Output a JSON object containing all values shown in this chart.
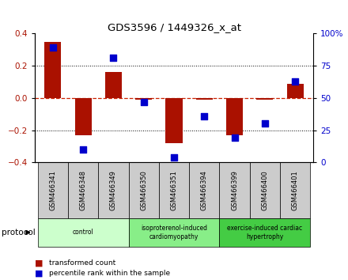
{
  "title": "GDS3596 / 1449326_x_at",
  "samples": [
    "GSM466341",
    "GSM466348",
    "GSM466349",
    "GSM466350",
    "GSM466351",
    "GSM466394",
    "GSM466399",
    "GSM466400",
    "GSM466401"
  ],
  "red_bars": [
    0.35,
    -0.23,
    0.16,
    -0.01,
    -0.28,
    -0.01,
    -0.23,
    -0.01,
    0.09
  ],
  "blue_dots_pct": [
    89,
    10,
    81,
    47,
    4,
    36,
    19,
    30,
    63
  ],
  "ylim": [
    -0.4,
    0.4
  ],
  "y2lim": [
    0,
    100
  ],
  "yticks": [
    -0.4,
    -0.2,
    0.0,
    0.2,
    0.4
  ],
  "y2ticks": [
    0,
    25,
    50,
    75,
    100
  ],
  "groups": [
    {
      "label": "control",
      "start": 0,
      "end": 3,
      "color": "#ccffcc"
    },
    {
      "label": "isoproterenol-induced\ncardiomyopathy",
      "start": 3,
      "end": 6,
      "color": "#88ee88"
    },
    {
      "label": "exercise-induced cardiac\nhypertrophy",
      "start": 6,
      "end": 9,
      "color": "#44cc44"
    }
  ],
  "red_color": "#aa1100",
  "blue_color": "#0000cc",
  "dot_grid_color": "#555555",
  "bar_width": 0.55,
  "dot_size": 28,
  "sample_bg": "#cccccc",
  "hline_color": "#cc2200"
}
